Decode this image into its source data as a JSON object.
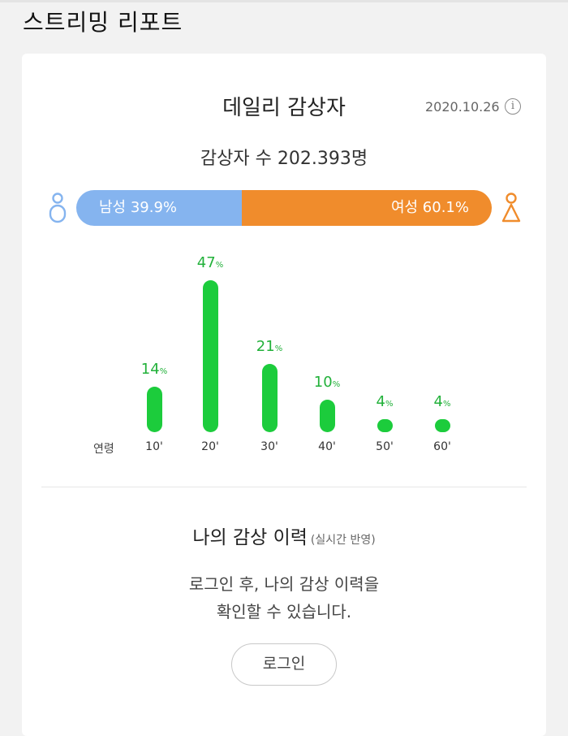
{
  "page": {
    "title": "스트리밍 리포트"
  },
  "daily": {
    "title": "데일리 감상자",
    "date": "2020.10.26",
    "viewer_count": "감상자 수 202.393명",
    "gender": {
      "male_label": "남성 39.9%",
      "female_label": "여성 60.1%",
      "male_share": 0.399,
      "male_color": "#85b4ef",
      "female_color": "#f08c2c"
    }
  },
  "icons": {
    "info": "i",
    "male": "male-person-icon",
    "female": "female-person-icon"
  },
  "chart_data": {
    "type": "bar",
    "xlabel": "연령",
    "categories": [
      "10'",
      "20'",
      "30'",
      "40'",
      "50'",
      "60'"
    ],
    "values": [
      14,
      47,
      21,
      10,
      4,
      4
    ],
    "unit": "%",
    "bar_color": "#1ccc3c",
    "label_color": "#22b13a"
  },
  "history": {
    "title": "나의 감상 이력",
    "note": "(실시간 반영)",
    "message_line1": "로그인 후, 나의 감상 이력을",
    "message_line2": "확인할 수 있습니다.",
    "login_label": "로그인"
  }
}
